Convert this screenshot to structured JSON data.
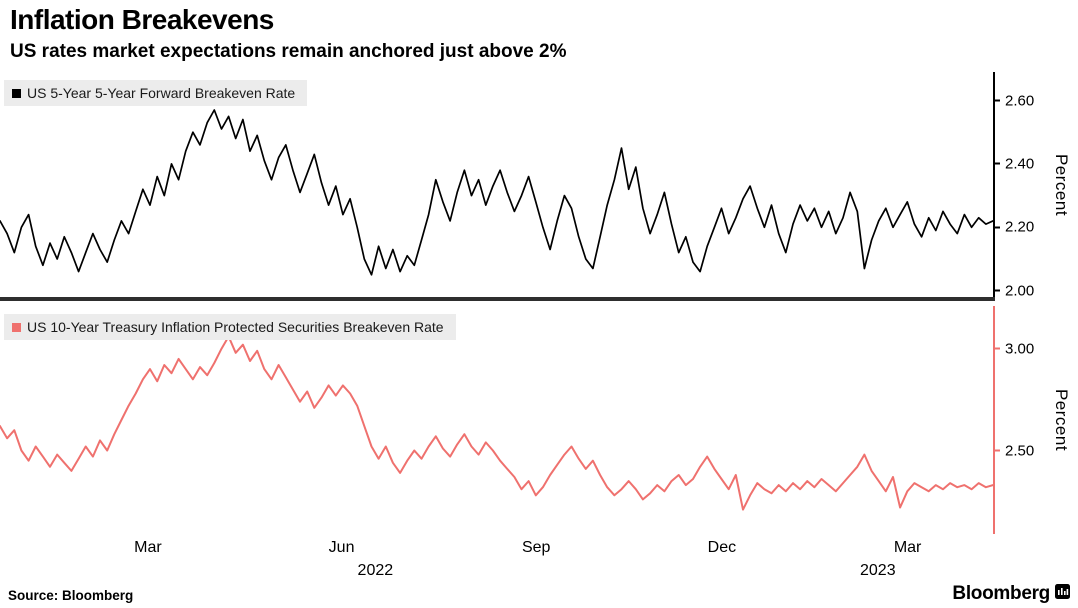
{
  "header": {
    "title": "Inflation Breakevens",
    "subtitle": "US rates market expectations remain anchored just above 2%"
  },
  "footer": {
    "source": "Source: Bloomberg",
    "brand": "Bloomberg"
  },
  "x_axis": {
    "ticks": [
      {
        "label": "Mar",
        "pos": 0.149
      },
      {
        "label": "Jun",
        "pos": 0.344
      },
      {
        "label": "Sep",
        "pos": 0.54
      },
      {
        "label": "Dec",
        "pos": 0.727
      },
      {
        "label": "Mar",
        "pos": 0.914
      }
    ],
    "years": [
      {
        "label": "2022",
        "pos": 0.378
      },
      {
        "label": "2023",
        "pos": 0.884
      }
    ]
  },
  "chart_data": [
    {
      "type": "line",
      "series_name": "US 5-Year 5-Year Forward Breakeven Rate",
      "color": "#000000",
      "ylabel": "Percent",
      "xlabel": "",
      "ylim": [
        1.98,
        2.69
      ],
      "yticks": [
        2.0,
        2.2,
        2.4,
        2.6
      ],
      "grid": false,
      "legend_position": "top-left",
      "values": [
        2.22,
        2.18,
        2.12,
        2.2,
        2.24,
        2.14,
        2.08,
        2.15,
        2.1,
        2.17,
        2.12,
        2.06,
        2.12,
        2.18,
        2.13,
        2.09,
        2.16,
        2.22,
        2.18,
        2.25,
        2.32,
        2.27,
        2.36,
        2.3,
        2.4,
        2.35,
        2.44,
        2.5,
        2.46,
        2.53,
        2.57,
        2.51,
        2.55,
        2.48,
        2.54,
        2.44,
        2.49,
        2.41,
        2.35,
        2.42,
        2.46,
        2.38,
        2.31,
        2.37,
        2.43,
        2.34,
        2.27,
        2.33,
        2.24,
        2.29,
        2.2,
        2.1,
        2.05,
        2.14,
        2.07,
        2.13,
        2.06,
        2.11,
        2.08,
        2.16,
        2.24,
        2.35,
        2.28,
        2.22,
        2.31,
        2.38,
        2.3,
        2.35,
        2.27,
        2.33,
        2.38,
        2.31,
        2.25,
        2.3,
        2.36,
        2.28,
        2.2,
        2.13,
        2.22,
        2.3,
        2.26,
        2.17,
        2.1,
        2.07,
        2.17,
        2.27,
        2.35,
        2.45,
        2.32,
        2.39,
        2.26,
        2.18,
        2.24,
        2.31,
        2.21,
        2.12,
        2.17,
        2.09,
        2.06,
        2.14,
        2.2,
        2.26,
        2.18,
        2.23,
        2.29,
        2.33,
        2.26,
        2.2,
        2.27,
        2.18,
        2.12,
        2.21,
        2.27,
        2.22,
        2.26,
        2.2,
        2.25,
        2.18,
        2.23,
        2.31,
        2.25,
        2.07,
        2.16,
        2.22,
        2.26,
        2.2,
        2.24,
        2.28,
        2.21,
        2.17,
        2.23,
        2.19,
        2.25,
        2.21,
        2.18,
        2.24,
        2.2,
        2.23,
        2.21,
        2.22
      ]
    },
    {
      "type": "line",
      "series_name": "US 10-Year Treasury Inflation Protected Securities Breakeven Rate",
      "color": "#ef716e",
      "ylabel": "Percent",
      "xlabel": "",
      "ylim": [
        2.09,
        3.21
      ],
      "yticks": [
        2.5,
        3.0
      ],
      "grid": false,
      "legend_position": "top-left",
      "values": [
        2.62,
        2.56,
        2.6,
        2.5,
        2.45,
        2.52,
        2.47,
        2.42,
        2.48,
        2.44,
        2.4,
        2.46,
        2.52,
        2.47,
        2.55,
        2.5,
        2.58,
        2.65,
        2.72,
        2.78,
        2.85,
        2.9,
        2.84,
        2.92,
        2.88,
        2.95,
        2.9,
        2.85,
        2.91,
        2.87,
        2.93,
        3.0,
        3.06,
        2.98,
        3.02,
        2.94,
        2.99,
        2.9,
        2.85,
        2.92,
        2.86,
        2.8,
        2.74,
        2.79,
        2.71,
        2.76,
        2.82,
        2.77,
        2.82,
        2.78,
        2.72,
        2.62,
        2.52,
        2.46,
        2.52,
        2.44,
        2.39,
        2.45,
        2.5,
        2.46,
        2.52,
        2.57,
        2.51,
        2.47,
        2.53,
        2.58,
        2.52,
        2.48,
        2.54,
        2.5,
        2.45,
        2.41,
        2.37,
        2.31,
        2.35,
        2.28,
        2.32,
        2.38,
        2.43,
        2.48,
        2.52,
        2.46,
        2.41,
        2.45,
        2.38,
        2.32,
        2.28,
        2.31,
        2.35,
        2.31,
        2.26,
        2.29,
        2.33,
        2.3,
        2.35,
        2.38,
        2.33,
        2.36,
        2.42,
        2.47,
        2.41,
        2.36,
        2.31,
        2.38,
        2.21,
        2.28,
        2.34,
        2.31,
        2.29,
        2.33,
        2.3,
        2.34,
        2.31,
        2.35,
        2.32,
        2.36,
        2.33,
        2.3,
        2.34,
        2.38,
        2.42,
        2.48,
        2.4,
        2.35,
        2.3,
        2.37,
        2.22,
        2.3,
        2.34,
        2.32,
        2.3,
        2.33,
        2.31,
        2.34,
        2.32,
        2.33,
        2.31,
        2.34,
        2.32,
        2.33
      ]
    }
  ]
}
